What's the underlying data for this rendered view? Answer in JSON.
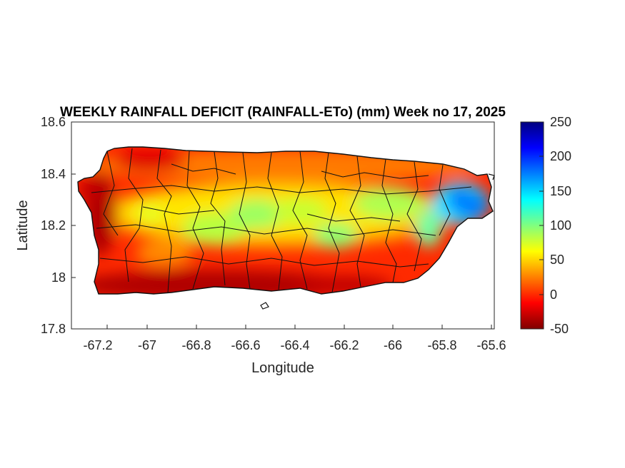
{
  "chart_data": {
    "type": "heatmap",
    "title": "WEEKLY RAINFALL DEFICIT (RAINFALL-ETo) (mm) Week no 17, 2025",
    "xlabel": "Longitude",
    "ylabel": "Latitude",
    "xlim": [
      -67.3,
      -65.59
    ],
    "ylim": [
      17.8,
      18.6
    ],
    "xticks": [
      "-67.2",
      "-67",
      "-66.8",
      "-66.6",
      "-66.4",
      "-66.2",
      "-66",
      "-65.8",
      "-65.6"
    ],
    "yticks": [
      "17.8",
      "18",
      "18.2",
      "18.4",
      "18.6"
    ],
    "colorbar": {
      "ticks": [
        "-50",
        "0",
        "50",
        "100",
        "150",
        "200",
        "250"
      ],
      "range": [
        -50,
        250
      ],
      "colormap": "jet"
    },
    "grid": false,
    "regions_described": [
      {
        "area": "south and west coasts",
        "value_range": [
          -50,
          0
        ]
      },
      {
        "area": "north coast",
        "value_range": [
          -30,
          20
        ]
      },
      {
        "area": "central interior",
        "value_range": [
          50,
          110
        ]
      },
      {
        "area": "northeast (El Yunque)",
        "value_range": [
          100,
          230
        ]
      }
    ]
  }
}
